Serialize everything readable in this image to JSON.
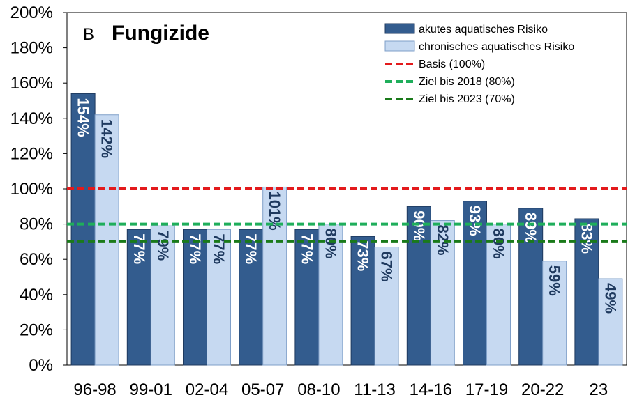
{
  "chart_data": {
    "type": "bar",
    "panel_letter": "B",
    "title": "Fungizide",
    "categories": [
      "96-98",
      "99-01",
      "02-04",
      "05-07",
      "08-10",
      "11-13",
      "14-16",
      "17-19",
      "20-22",
      "23"
    ],
    "series": [
      {
        "name": "akutes aquatisches Risiko",
        "values": [
          154,
          77,
          77,
          77,
          77,
          73,
          90,
          93,
          89,
          83
        ],
        "labels": [
          "154%",
          "77%",
          "77%",
          "77%",
          "77%",
          "73%",
          "90%",
          "93%",
          "89%",
          "83%"
        ],
        "color": "#335c8e",
        "label_color": "#ffffff"
      },
      {
        "name": "chronisches aquatisches Risiko",
        "values": [
          142,
          79,
          77,
          101,
          80,
          67,
          82,
          80,
          59,
          49
        ],
        "labels": [
          "142%",
          "79%",
          "77%",
          "101%",
          "80%",
          "67%",
          "82%",
          "80%",
          "59%",
          "49%"
        ],
        "color": "#c6d9f1",
        "label_color": "#1f3a5f"
      }
    ],
    "reference_lines": [
      {
        "name": "Basis (100%)",
        "value": 100,
        "color": "#e31a1c"
      },
      {
        "name": "Ziel bis 2018 (80%)",
        "value": 80,
        "color": "#1fae5b"
      },
      {
        "name": "Ziel bis 2023 (70%)",
        "value": 70,
        "color": "#1a7a1a"
      }
    ],
    "y_ticks": [
      "0%",
      "20%",
      "40%",
      "60%",
      "80%",
      "100%",
      "120%",
      "140%",
      "160%",
      "180%",
      "200%"
    ],
    "ylim": [
      0,
      200
    ],
    "legend_position": "top-right",
    "grid": false
  }
}
